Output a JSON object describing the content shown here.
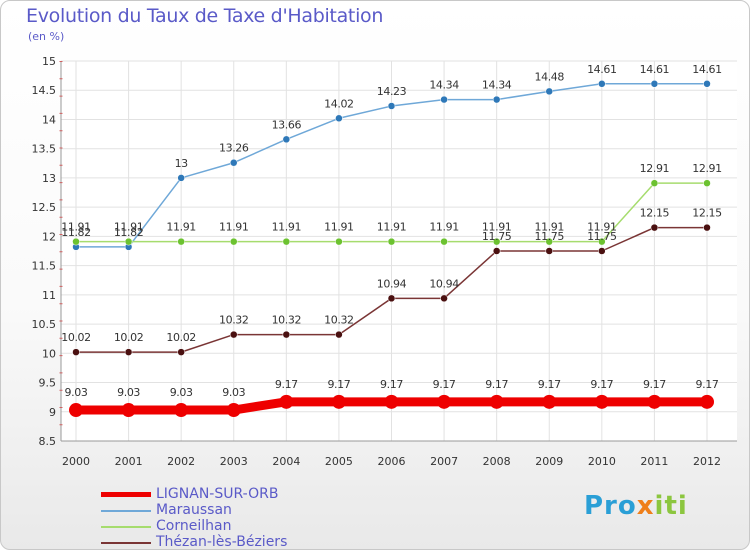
{
  "header": {
    "title": "Evolution du Taux de Taxe d'Habitation",
    "unit": "(en %)"
  },
  "logo": {
    "text": "Proxiti"
  },
  "chart_data": {
    "type": "line",
    "title": "Evolution du Taux de Taxe d'Habitation",
    "subtitle": "(en %)",
    "xlabel": "",
    "ylabel": "",
    "x": [
      "2000",
      "2001",
      "2002",
      "2003",
      "2004",
      "2005",
      "2006",
      "2007",
      "2008",
      "2009",
      "2010",
      "2011",
      "2012"
    ],
    "ylim": [
      8.5,
      15
    ],
    "yticks": [
      "8.5",
      "9",
      "9.5",
      "10",
      "10.5",
      "11",
      "11.5",
      "12",
      "12.5",
      "13",
      "13.5",
      "14",
      "14.5",
      "15"
    ],
    "grid": true,
    "legend_position": "bottom-left",
    "series": [
      {
        "name": "Maraussan",
        "color": "#6fa8d8",
        "marker_color": "#2e78b8",
        "values": [
          11.82,
          11.82,
          13,
          13.26,
          13.66,
          14.02,
          14.23,
          14.34,
          14.34,
          14.48,
          14.61,
          14.61,
          14.61
        ],
        "labels": [
          "11.82",
          "11.82",
          "13",
          "13.26",
          "13.66",
          "14.02",
          "14.23",
          "14.34",
          "14.34",
          "14.48",
          "14.61",
          "14.61",
          "14.61"
        ]
      },
      {
        "name": "Corneilhan",
        "color": "#a6dc6e",
        "marker_color": "#6cc230",
        "values": [
          11.91,
          11.91,
          11.91,
          11.91,
          11.91,
          11.91,
          11.91,
          11.91,
          11.91,
          11.91,
          11.91,
          12.91,
          12.91
        ],
        "labels": [
          "11.91",
          "11.91",
          "11.91",
          "11.91",
          "11.91",
          "11.91",
          "11.91",
          "11.91",
          "11.91",
          "11.91",
          "11.91",
          "12.91",
          "12.91"
        ]
      },
      {
        "name": "Thézan-lès-Béziers",
        "color": "#7a3535",
        "marker_color": "#4a1010",
        "values": [
          10.02,
          10.02,
          10.02,
          10.32,
          10.32,
          10.32,
          10.94,
          10.94,
          11.75,
          11.75,
          11.75,
          12.15,
          12.15
        ],
        "labels": [
          "10.02",
          "10.02",
          "10.02",
          "10.32",
          "10.32",
          "10.32",
          "10.94",
          "10.94",
          "11.75",
          "11.75",
          "11.75",
          "12.15",
          "12.15"
        ]
      },
      {
        "name": "LIGNAN-SUR-ORB",
        "color": "#ee0000",
        "marker_color": "#ee0000",
        "values": [
          9.03,
          9.03,
          9.03,
          9.03,
          9.17,
          9.17,
          9.17,
          9.17,
          9.17,
          9.17,
          9.17,
          9.17,
          9.17
        ],
        "labels": [
          "9.03",
          "9.03",
          "9.03",
          "9.03",
          "9.17",
          "9.17",
          "9.17",
          "9.17",
          "9.17",
          "9.17",
          "9.17",
          "9.17",
          "9.17"
        ]
      }
    ],
    "legend": [
      {
        "name": "LIGNAN-SUR-ORB",
        "color": "#ee0000"
      },
      {
        "name": "Maraussan",
        "color": "#6fa8d8"
      },
      {
        "name": "Corneilhan",
        "color": "#a6dc6e"
      },
      {
        "name": "Thézan-lès-Béziers",
        "color": "#7a3535"
      }
    ]
  }
}
